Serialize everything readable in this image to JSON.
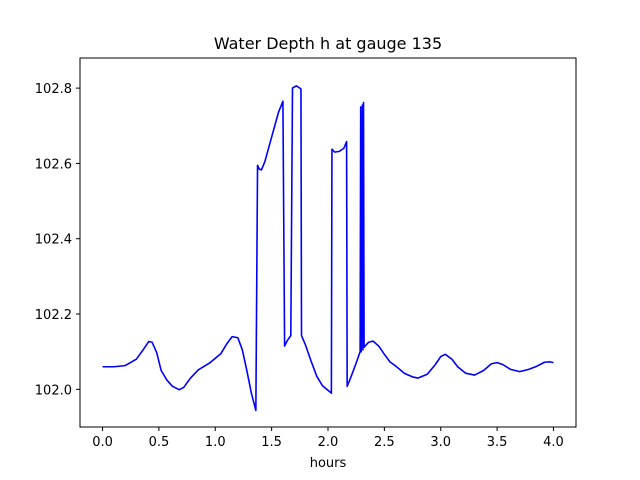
{
  "chart_data": {
    "type": "line",
    "title": "Water Depth h at gauge 135",
    "xlabel": "hours",
    "ylabel": "",
    "xlim": [
      -0.2,
      4.2
    ],
    "ylim": [
      101.9,
      102.88
    ],
    "x_ticks": [
      "0.0",
      "0.5",
      "1.0",
      "1.5",
      "2.0",
      "2.5",
      "3.0",
      "3.5",
      "4.0"
    ],
    "y_ticks": [
      "102.0",
      "102.2",
      "102.4",
      "102.6",
      "102.8"
    ],
    "x_tick_values": [
      0.0,
      0.5,
      1.0,
      1.5,
      2.0,
      2.5,
      3.0,
      3.5,
      4.0
    ],
    "y_tick_values": [
      102.0,
      102.2,
      102.4,
      102.6,
      102.8
    ],
    "grid": false,
    "series": [
      {
        "color": "#0000ff",
        "points": [
          [
            0.0,
            102.06
          ],
          [
            0.1,
            102.06
          ],
          [
            0.2,
            102.063
          ],
          [
            0.3,
            102.08
          ],
          [
            0.36,
            102.105
          ],
          [
            0.41,
            102.127
          ],
          [
            0.44,
            102.125
          ],
          [
            0.48,
            102.098
          ],
          [
            0.52,
            102.05
          ],
          [
            0.57,
            102.025
          ],
          [
            0.62,
            102.008
          ],
          [
            0.68,
            101.999
          ],
          [
            0.72,
            102.005
          ],
          [
            0.78,
            102.03
          ],
          [
            0.85,
            102.052
          ],
          [
            0.95,
            102.07
          ],
          [
            1.05,
            102.095
          ],
          [
            1.1,
            102.12
          ],
          [
            1.15,
            102.14
          ],
          [
            1.2,
            102.137
          ],
          [
            1.24,
            102.105
          ],
          [
            1.28,
            102.05
          ],
          [
            1.32,
            101.99
          ],
          [
            1.36,
            101.944
          ],
          [
            1.375,
            102.595
          ],
          [
            1.39,
            102.585
          ],
          [
            1.41,
            102.583
          ],
          [
            1.44,
            102.605
          ],
          [
            1.5,
            102.67
          ],
          [
            1.56,
            102.735
          ],
          [
            1.6,
            102.765
          ],
          [
            1.615,
            102.115
          ],
          [
            1.64,
            102.13
          ],
          [
            1.67,
            102.143
          ],
          [
            1.685,
            102.8
          ],
          [
            1.72,
            102.806
          ],
          [
            1.76,
            102.798
          ],
          [
            1.765,
            102.143
          ],
          [
            1.8,
            102.118
          ],
          [
            1.85,
            102.075
          ],
          [
            1.9,
            102.035
          ],
          [
            1.95,
            102.01
          ],
          [
            2.03,
            101.99
          ],
          [
            2.035,
            102.638
          ],
          [
            2.06,
            102.63
          ],
          [
            2.1,
            102.632
          ],
          [
            2.14,
            102.64
          ],
          [
            2.165,
            102.658
          ],
          [
            2.17,
            102.008
          ],
          [
            2.2,
            102.03
          ],
          [
            2.25,
            102.07
          ],
          [
            2.285,
            102.1
          ],
          [
            2.29,
            102.75
          ],
          [
            2.295,
            102.1
          ],
          [
            2.305,
            102.755
          ],
          [
            2.31,
            102.105
          ],
          [
            2.315,
            102.762
          ],
          [
            2.32,
            102.112
          ],
          [
            2.36,
            102.125
          ],
          [
            2.4,
            102.128
          ],
          [
            2.45,
            102.115
          ],
          [
            2.5,
            102.093
          ],
          [
            2.55,
            102.073
          ],
          [
            2.6,
            102.062
          ],
          [
            2.68,
            102.042
          ],
          [
            2.75,
            102.033
          ],
          [
            2.8,
            102.03
          ],
          [
            2.88,
            102.04
          ],
          [
            2.95,
            102.065
          ],
          [
            3.0,
            102.087
          ],
          [
            3.04,
            102.093
          ],
          [
            3.1,
            102.08
          ],
          [
            3.15,
            102.06
          ],
          [
            3.22,
            102.043
          ],
          [
            3.3,
            102.038
          ],
          [
            3.38,
            102.05
          ],
          [
            3.45,
            102.068
          ],
          [
            3.5,
            102.071
          ],
          [
            3.55,
            102.066
          ],
          [
            3.62,
            102.053
          ],
          [
            3.7,
            102.047
          ],
          [
            3.78,
            102.053
          ],
          [
            3.85,
            102.061
          ],
          [
            3.92,
            102.072
          ],
          [
            3.97,
            102.073
          ],
          [
            4.0,
            102.071
          ]
        ]
      }
    ]
  }
}
